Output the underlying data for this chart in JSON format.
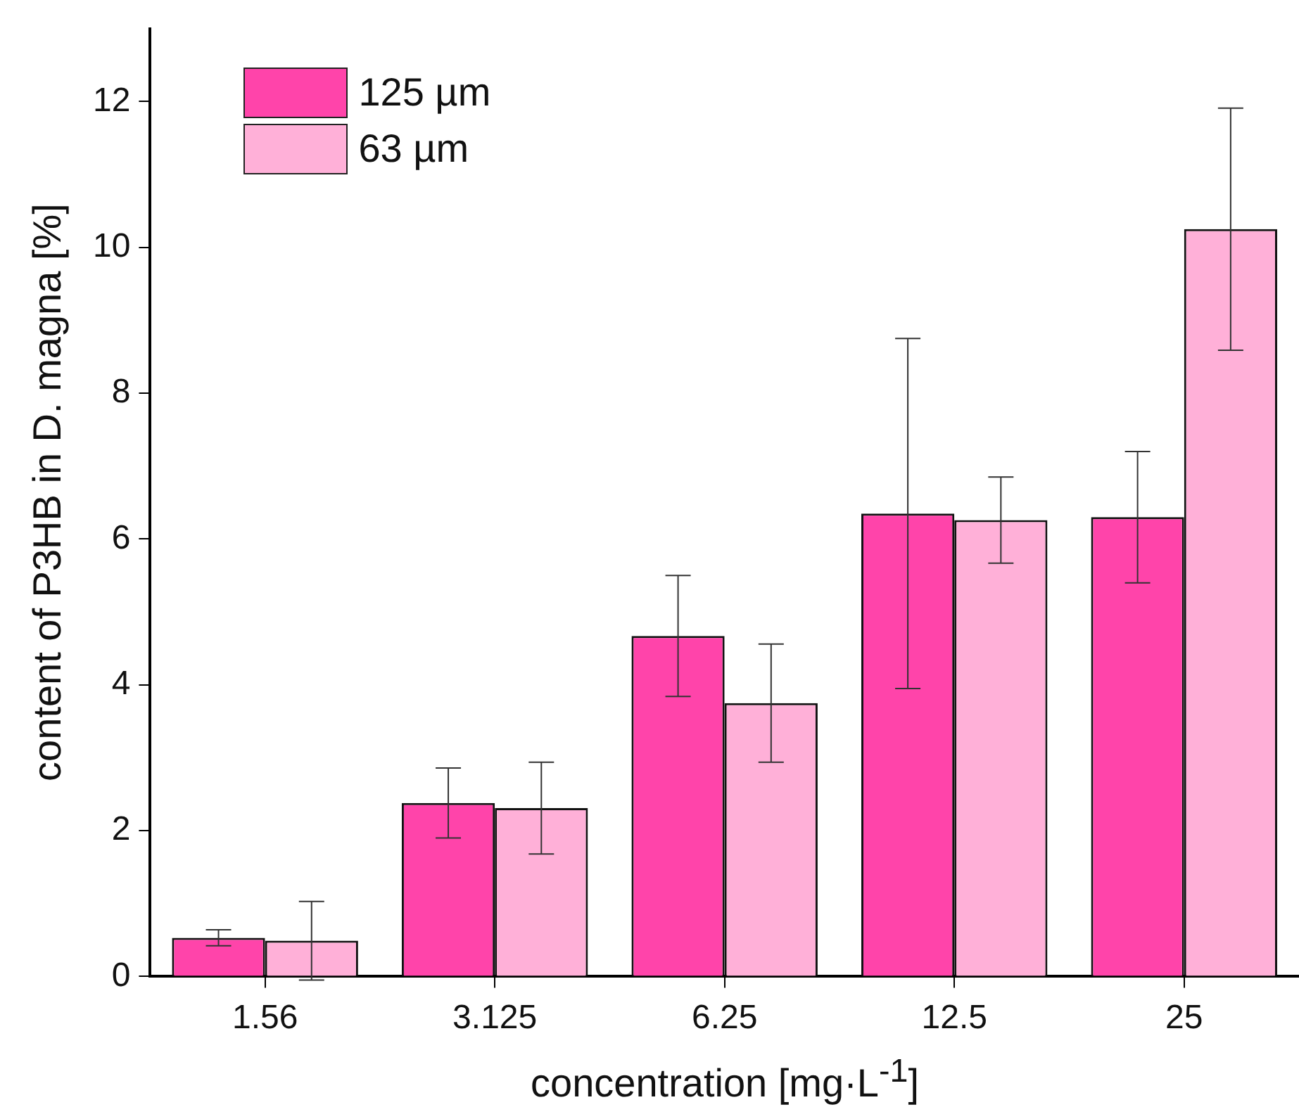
{
  "chart_data": {
    "type": "bar",
    "xlabel": "concentration [mg·L$^{-1}$]",
    "ylabel": "content of P3HB in D. magna [%]",
    "categories": [
      "1.56",
      "3.125",
      "6.25",
      "12.5",
      "25"
    ],
    "series": [
      {
        "name": "125 µm",
        "color": "#ff44aa",
        "values": [
          0.53,
          2.38,
          4.67,
          6.35,
          6.3
        ],
        "errors": [
          0.11,
          0.48,
          0.83,
          2.4,
          0.9
        ]
      },
      {
        "name": "63 µm",
        "color": "#ffb0d8",
        "values": [
          0.49,
          2.31,
          3.75,
          6.26,
          10.25
        ],
        "errors": [
          0.54,
          0.63,
          0.81,
          0.59,
          1.66
        ]
      }
    ],
    "ylim": [
      0,
      13
    ],
    "yticks": [
      0,
      2,
      4,
      6,
      8,
      10,
      12
    ],
    "grid": false,
    "legend": "top left"
  }
}
